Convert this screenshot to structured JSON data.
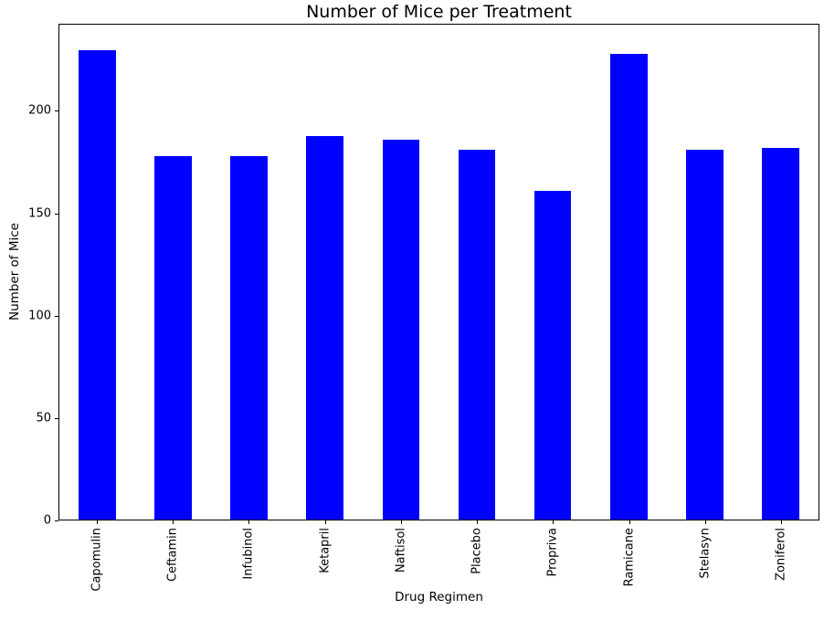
{
  "chart_data": {
    "type": "bar",
    "title": "Number of Mice per Treatment",
    "xlabel": "Drug Regimen",
    "ylabel": "Number of Mice",
    "categories": [
      "Capomulin",
      "Ceftamin",
      "Infubinol",
      "Ketapril",
      "Naftisol",
      "Placebo",
      "Propriva",
      "Ramicane",
      "Stelasyn",
      "Zoniferol"
    ],
    "values": [
      230,
      178,
      178,
      188,
      186,
      181,
      161,
      228,
      181,
      182
    ],
    "yticks": [
      0,
      50,
      100,
      150,
      200
    ],
    "ylim": [
      0,
      242.5
    ],
    "bar_color": "#0000ff",
    "bar_width_fraction": 0.49,
    "x_tick_label_rotation": 90,
    "grid": false,
    "legend": "none",
    "background_color": "#ffffff",
    "spine_color": "#000000",
    "text_color": "#000000"
  }
}
